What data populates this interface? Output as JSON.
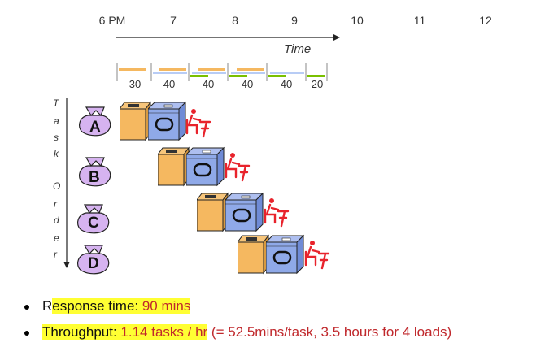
{
  "timeline": {
    "hours": [
      "6 PM",
      "7",
      "8",
      "9",
      "10",
      "11",
      "12"
    ],
    "time_label": "Time",
    "durations": [
      "30",
      "40",
      "40",
      "40",
      "40",
      "20"
    ]
  },
  "task_order_label": [
    "T",
    "a",
    "s",
    "k",
    "O",
    "r",
    "d",
    "e",
    "r"
  ],
  "tasks": [
    {
      "letter": "A"
    },
    {
      "letter": "B"
    },
    {
      "letter": "C"
    },
    {
      "letter": "D"
    }
  ],
  "colors": {
    "washer": "#f5b860",
    "dryer": "#8fa9e8",
    "folder": "#e8232c",
    "bag": "#d6b3f0",
    "wash_bar": "#f5b860",
    "dry_bar": "#b8ccf5",
    "fold_bar": "#7ac000",
    "highlight": "#ffff33"
  },
  "bullets": {
    "response_prefix": "R",
    "response_label": "esponse time: ",
    "response_value": "90 mins",
    "throughput_label": "Throughput: ",
    "throughput_value": "1.14 tasks / hr",
    "throughput_detail": " (= 52.5mins/task, 3.5 hours for 4 loads)"
  }
}
